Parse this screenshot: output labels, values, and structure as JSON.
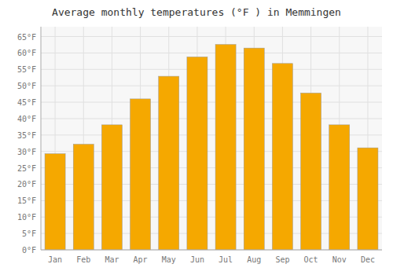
{
  "chart_data": {
    "type": "bar",
    "title": "Average monthly temperatures (°F ) in Memmingen",
    "categories": [
      "Jan",
      "Feb",
      "Mar",
      "Apr",
      "May",
      "Jun",
      "Jul",
      "Aug",
      "Sep",
      "Oct",
      "Nov",
      "Dec"
    ],
    "values": [
      29.3,
      32.2,
      38.1,
      46.0,
      52.9,
      58.8,
      62.6,
      61.5,
      56.8,
      47.8,
      38.1,
      31.1
    ],
    "color": "#F5A800",
    "ylim": [
      0,
      68
    ],
    "yticks": [
      {
        "value": 0,
        "label": "0°F"
      },
      {
        "value": 5,
        "label": "5°F"
      },
      {
        "value": 10,
        "label": "10°F"
      },
      {
        "value": 15,
        "label": "15°F"
      },
      {
        "value": 20,
        "label": "20°F"
      },
      {
        "value": 25,
        "label": "25°F"
      },
      {
        "value": 30,
        "label": "30°F"
      },
      {
        "value": 35,
        "label": "35°F"
      },
      {
        "value": 40,
        "label": "40°F"
      },
      {
        "value": 45,
        "label": "45°F"
      },
      {
        "value": 50,
        "label": "50°F"
      },
      {
        "value": 55,
        "label": "55°F"
      },
      {
        "value": 60,
        "label": "60°F"
      },
      {
        "value": 65,
        "label": "65°F"
      }
    ],
    "grid": true
  }
}
